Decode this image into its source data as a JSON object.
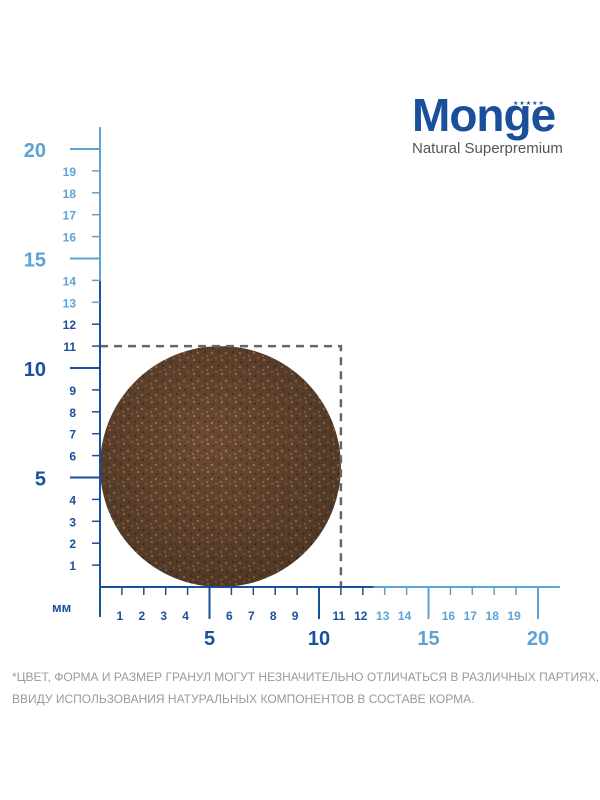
{
  "brand": {
    "name": "Monge",
    "tagline": "Natural Superpremium",
    "logo_color": "#1a4f9c"
  },
  "units_label": "мм",
  "colors": {
    "axis_dark": "#1a4f9c",
    "axis_light": "#5ba3d6",
    "dashed_box": "#666666",
    "kibble": "#6b4a32"
  },
  "axis": {
    "min": 0,
    "max": 21,
    "dark_until": 12,
    "major_ticks": [
      5,
      10,
      15,
      20
    ],
    "minor_ticks": [
      1,
      2,
      3,
      4,
      6,
      7,
      8,
      9,
      11,
      12,
      13,
      14,
      16,
      17,
      18,
      19
    ]
  },
  "kibble": {
    "diameter_mm": 11,
    "center_mm": [
      5.5,
      5.5
    ]
  },
  "disclaimer": {
    "line1": "*ЦВЕТ, ФОРМА И РАЗМЕР ГРАНУЛ МОГУТ НЕЗНАЧИТЕЛЬНО ОТЛИЧАТЬСЯ В РАЗЛИЧНЫХ ПАРТИЯХ,",
    "line2": "ВВИДУ ИСПОЛЬЗОВАНИЯ НАТУРАЛЬНЫХ КОМПОНЕНТОВ В СОСТАВЕ КОРМА."
  }
}
